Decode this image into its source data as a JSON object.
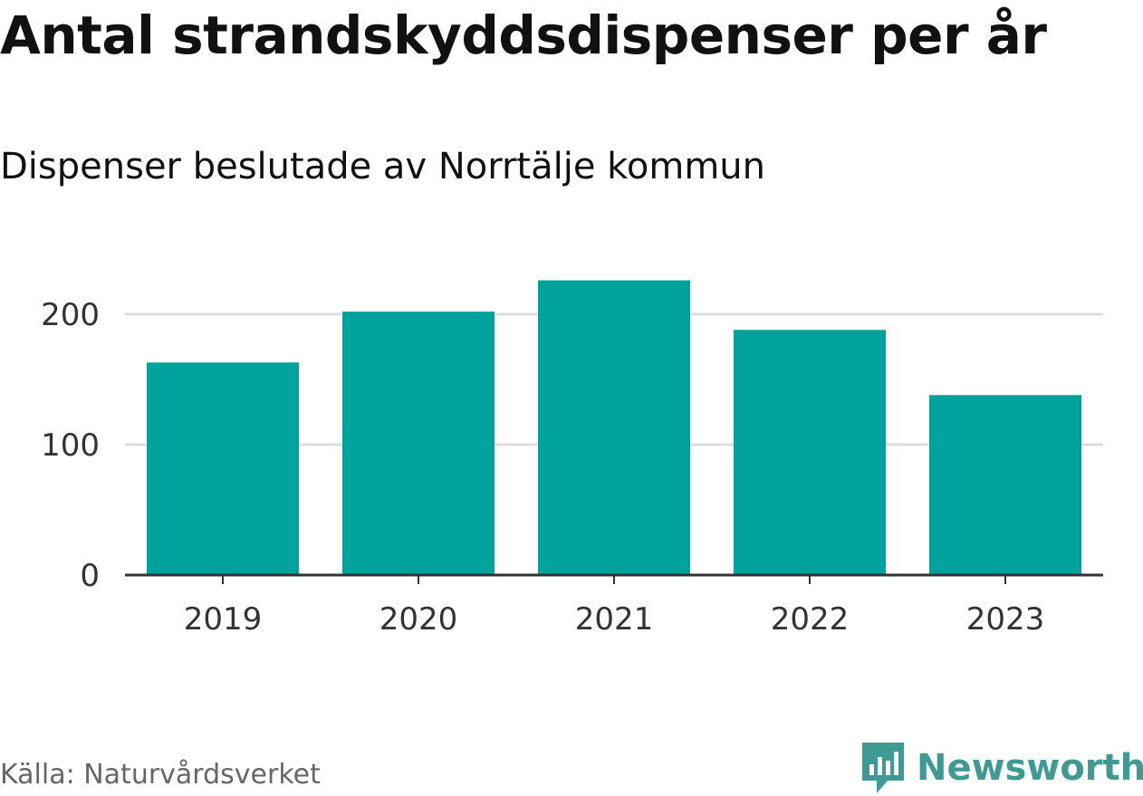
{
  "title": "Antal strandskyddsdispenser per år",
  "subtitle": "Dispenser beslutade av Norrtälje kommun",
  "source": "Källa: Naturvårdsverket",
  "brand": {
    "name": "Newsworthy",
    "color": "#3f9a93",
    "icon": "newsworthy-logo-icon"
  },
  "colors": {
    "bar": "#00a39b",
    "grid": "#dddddd",
    "axis": "#333333"
  },
  "chart_data": {
    "type": "bar",
    "title": "Antal strandskyddsdispenser per år",
    "subtitle": "Dispenser beslutade av Norrtälje kommun",
    "xlabel": "",
    "ylabel": "",
    "categories": [
      "2019",
      "2020",
      "2021",
      "2022",
      "2023"
    ],
    "values": [
      163,
      202,
      226,
      188,
      138
    ],
    "ylim": [
      0,
      250
    ],
    "yticks": [
      0,
      100,
      200
    ],
    "grid": true,
    "legend": "none"
  }
}
